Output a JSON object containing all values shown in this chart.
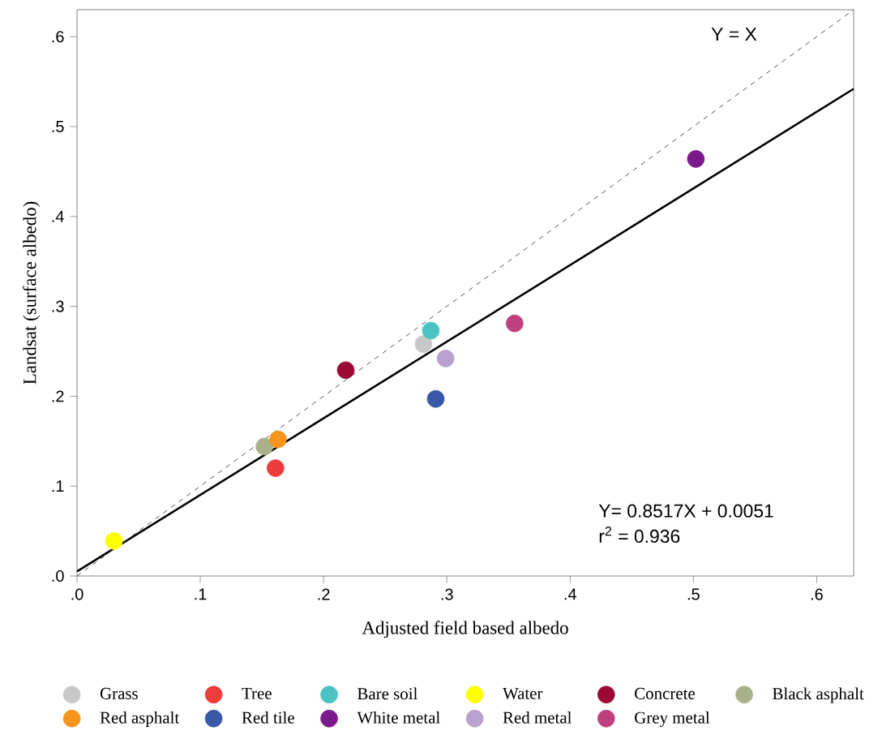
{
  "chart_data": {
    "type": "scatter",
    "xlabel": "Adjusted field based albedo",
    "ylabel": "Landsat (surface albedo)",
    "xlim": [
      0,
      0.63
    ],
    "ylim": [
      0,
      0.63
    ],
    "xticks": [
      {
        "value": 0,
        "label": ".0"
      },
      {
        "value": 0.1,
        "label": ".1"
      },
      {
        "value": 0.2,
        "label": ".2"
      },
      {
        "value": 0.3,
        "label": ".3"
      },
      {
        "value": 0.4,
        "label": ".4"
      },
      {
        "value": 0.5,
        "label": ".5"
      },
      {
        "value": 0.6,
        "label": ".6"
      }
    ],
    "yticks": [
      {
        "value": 0,
        "label": ".0"
      },
      {
        "value": 0.1,
        "label": ".1"
      },
      {
        "value": 0.2,
        "label": ".2"
      },
      {
        "value": 0.3,
        "label": ".3"
      },
      {
        "value": 0.4,
        "label": ".4"
      },
      {
        "value": 0.5,
        "label": ".5"
      },
      {
        "value": 0.6,
        "label": ".6"
      }
    ],
    "marker": "circle",
    "grid": false,
    "legend": "bottom",
    "series": [
      {
        "name": "Grass",
        "color": "#c8c8c8",
        "x": [
          0.281
        ],
        "values": [
          0.258
        ]
      },
      {
        "name": "Tree",
        "color": "#ee3b3b",
        "x": [
          0.161
        ],
        "values": [
          0.12
        ]
      },
      {
        "name": "Bare soil",
        "color": "#4cc3c3",
        "x": [
          0.287
        ],
        "values": [
          0.273
        ]
      },
      {
        "name": "Water",
        "color": "#ffff00",
        "x": [
          0.03
        ],
        "values": [
          0.039
        ]
      },
      {
        "name": "Concrete",
        "color": "#9b0a35",
        "x": [
          0.218
        ],
        "values": [
          0.229
        ]
      },
      {
        "name": "Black asphalt",
        "color": "#a9b18a",
        "x": [
          0.152
        ],
        "values": [
          0.144
        ]
      },
      {
        "name": "Red asphalt",
        "color": "#f7941d",
        "x": [
          0.163
        ],
        "values": [
          0.152
        ]
      },
      {
        "name": "Red tile",
        "color": "#3a58a8",
        "x": [
          0.291
        ],
        "values": [
          0.197
        ]
      },
      {
        "name": "White metal",
        "color": "#7b1a8c",
        "x": [
          0.502
        ],
        "values": [
          0.464
        ]
      },
      {
        "name": "Red metal",
        "color": "#b9a0cf",
        "x": [
          0.299
        ],
        "values": [
          0.242
        ]
      },
      {
        "name": "Grey metal",
        "color": "#c0407f",
        "x": [
          0.355
        ],
        "values": [
          0.281
        ]
      },
      {
        "type": "line",
        "marker": "none",
        "color": "#000000",
        "line_style": "solid",
        "x": [
          0,
          0.63
        ],
        "values": [
          0.005,
          0.542
        ]
      },
      {
        "type": "line",
        "marker": "none",
        "color": "#555555",
        "line_style": "dashed",
        "x": [
          0,
          0.63
        ],
        "values": [
          0,
          0.63
        ]
      }
    ],
    "annotations": [
      "Y = X",
      "Y= 0.8517X + 0.0051",
      "r$^{2}$ = 0.936"
    ]
  }
}
